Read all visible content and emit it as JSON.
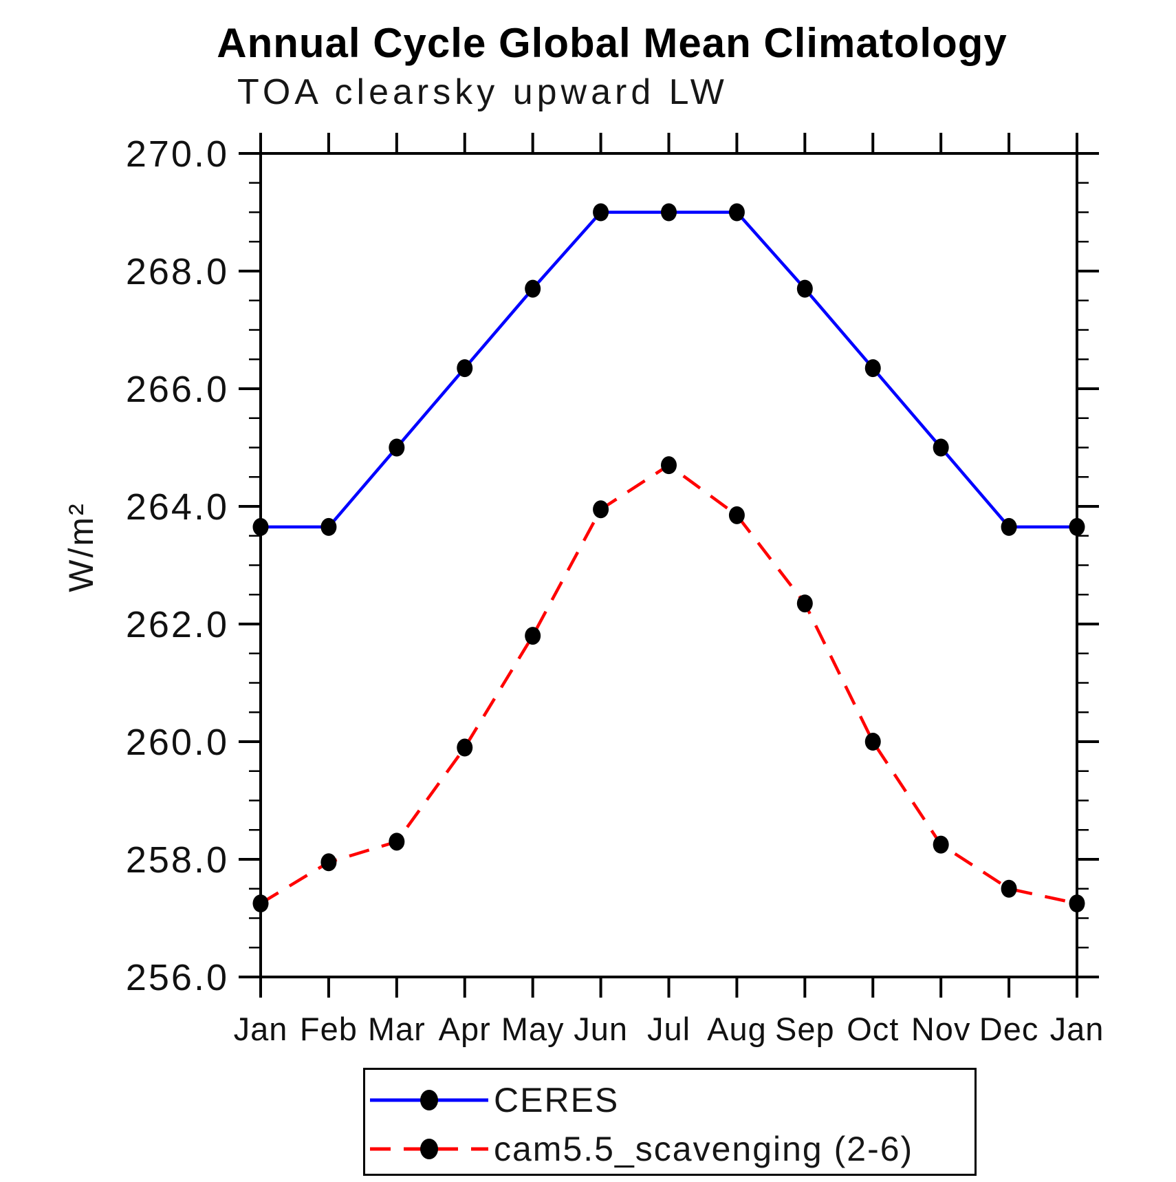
{
  "title": "Annual Cycle Global Mean Climatology",
  "subtitle": "TOA clearsky upward LW",
  "chart_data": {
    "type": "line",
    "title": "Annual Cycle Global Mean Climatology",
    "subtitle": "TOA clearsky upward LW",
    "ylabel": "W/m²",
    "xlabel": "",
    "categories": [
      "Jan",
      "Feb",
      "Mar",
      "Apr",
      "May",
      "Jun",
      "Jul",
      "Aug",
      "Sep",
      "Oct",
      "Nov",
      "Dec",
      "Jan"
    ],
    "series": [
      {
        "name": "CERES",
        "color": "#0000ff",
        "line_style": "solid",
        "marker": "black-dot",
        "values": [
          263.65,
          263.65,
          265.0,
          266.35,
          267.7,
          269.0,
          269.0,
          269.0,
          267.7,
          266.35,
          265.0,
          263.65,
          263.65
        ]
      },
      {
        "name": "cam5.5_scavenging (2-6)",
        "color": "#ff0000",
        "line_style": "dashed",
        "marker": "black-dot",
        "values": [
          257.25,
          257.95,
          258.3,
          259.9,
          261.8,
          263.95,
          264.7,
          263.85,
          262.35,
          260.0,
          258.25,
          257.5,
          257.25
        ]
      }
    ],
    "ylim": [
      256.0,
      270.0
    ],
    "ytick_major": 2.0,
    "ytick_minor": 0.5,
    "ytick_label_format": "one-decimal",
    "marker_color": "#000000",
    "axis_color": "#000000",
    "grid": false,
    "legend_position": "bottom-left"
  }
}
